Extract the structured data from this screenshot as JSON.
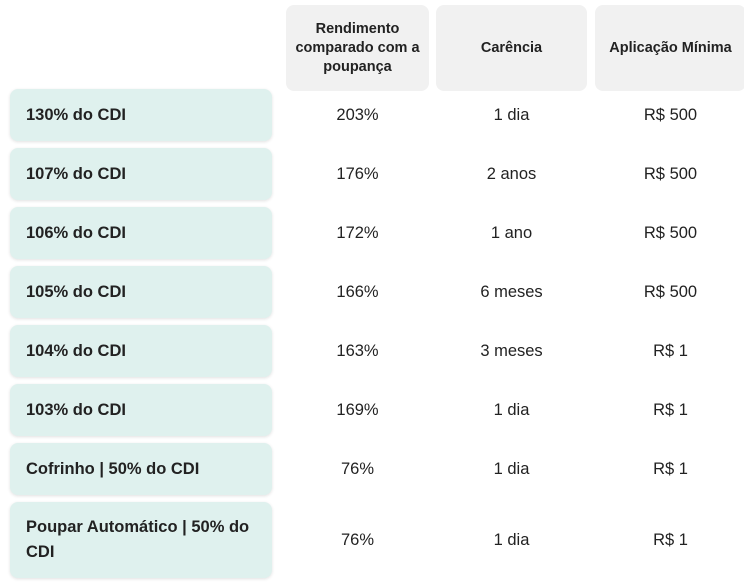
{
  "headers": {
    "rendimento": "Rendimento comparado com a poupança",
    "carencia": "Carência",
    "aplicacao": "Aplicação Mínima"
  },
  "rows": [
    {
      "label": "130% do CDI",
      "rendimento": "203%",
      "carencia": "1 dia",
      "aplicacao": "R$ 500"
    },
    {
      "label": "107% do CDI",
      "rendimento": "176%",
      "carencia": "2 anos",
      "aplicacao": "R$ 500"
    },
    {
      "label": "106% do CDI",
      "rendimento": "172%",
      "carencia": "1 ano",
      "aplicacao": "R$ 500"
    },
    {
      "label": "105% do CDI",
      "rendimento": "166%",
      "carencia": "6 meses",
      "aplicacao": "R$ 500"
    },
    {
      "label": "104% do CDI",
      "rendimento": "163%",
      "carencia": "3 meses",
      "aplicacao": "R$ 1"
    },
    {
      "label": "103% do CDI",
      "rendimento": "169%",
      "carencia": "1 dia",
      "aplicacao": "R$ 1"
    },
    {
      "label": "Cofrinho | 50% do CDI",
      "rendimento": "76%",
      "carencia": "1 dia",
      "aplicacao": "R$ 1"
    },
    {
      "label": "Poupar Automático | 50% do CDI",
      "rendimento": "76%",
      "carencia": "1 dia",
      "aplicacao": "R$ 1"
    }
  ],
  "colors": {
    "label_bg": "#dff1ee",
    "header_bg": "#f1f1f1",
    "text": "#222222"
  }
}
